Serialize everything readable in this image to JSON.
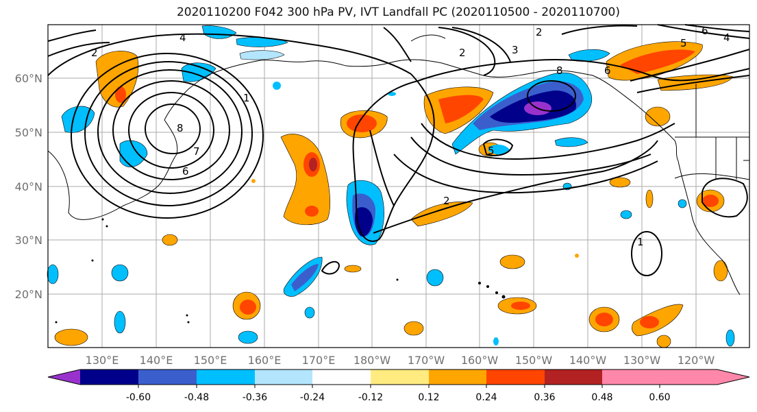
{
  "title": "2020110200 F042 300 hPa PV, IVT Landfall PC (2020110500 - 2020110700)",
  "lat_labels": [
    "60°N",
    "50°N",
    "40°N",
    "30°N",
    "20°N"
  ],
  "lon_labels": [
    "130°E",
    "140°E",
    "150°E",
    "160°E",
    "170°E",
    "180°W",
    "170°W",
    "160°W",
    "150°W",
    "140°W",
    "130°W",
    "120°W"
  ],
  "colorbar": {
    "colors": [
      "#9932CC",
      "#00008B",
      "#3A5FCD",
      "#00BFFF",
      "#B3E5FC",
      "#FFFFFF",
      "#FFEB80",
      "#FFA500",
      "#FF4500",
      "#B22222",
      "#FF88AA"
    ],
    "tick_labels": [
      "-0.60",
      "-0.48",
      "-0.36",
      "-0.24",
      "-0.12",
      "0.12",
      "0.24",
      "0.36",
      "0.48",
      "0.60"
    ]
  },
  "contour_labels": [
    "4",
    "2",
    "6",
    "8",
    "2",
    "3",
    "2",
    "6",
    "5",
    "4",
    "6",
    "8",
    "2",
    "1",
    "7",
    "5",
    "1"
  ]
}
